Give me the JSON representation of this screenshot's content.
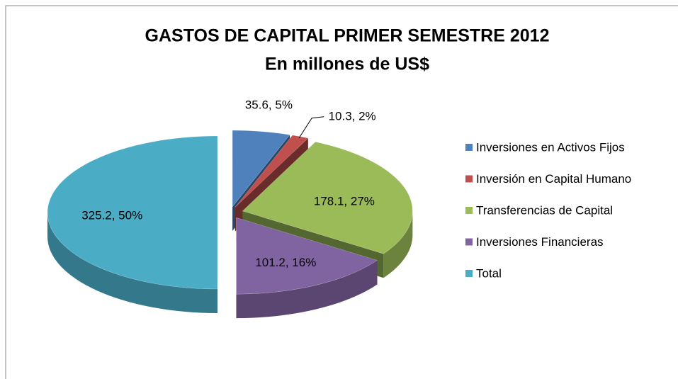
{
  "chart_data": {
    "type": "pie3d",
    "title": "GASTOS DE CAPITAL PRIMER SEMESTRE 2012",
    "subtitle": "En millones de US$",
    "categories": [
      "Inversiones en Activos Fijos",
      "Inversión en Capital Humano",
      "Transferencias de Capital",
      "Inversiones Financieras",
      "Total"
    ],
    "values": [
      35.6,
      10.3,
      178.1,
      101.2,
      325.2
    ],
    "value_labels": [
      "35.6, 5%",
      "10.3, 2%",
      "178.1, 27%",
      "101.2, 16%",
      "325.2, 50%"
    ],
    "colors": [
      "#4f81bd",
      "#c0504d",
      "#9bbb59",
      "#8064a2",
      "#4bacc6"
    ],
    "legend": "right"
  }
}
